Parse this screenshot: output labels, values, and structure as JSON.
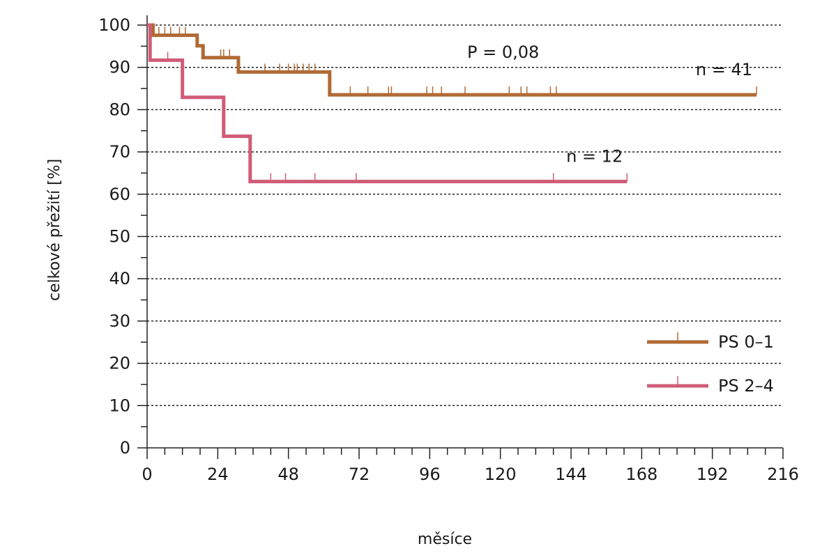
{
  "chart_data": {
    "type": "line",
    "step": true,
    "title": "",
    "xlabel": "měsíce",
    "ylabel": "celkové přežití [%]",
    "xlim": [
      0,
      216
    ],
    "ylim": [
      0,
      100
    ],
    "xticks": [
      "0",
      "24",
      "48",
      "72",
      "96",
      "120",
      "144",
      "168",
      "192",
      "216"
    ],
    "yticks": [
      "0",
      "10",
      "20",
      "30",
      "40",
      "50",
      "60",
      "70",
      "80",
      "90",
      "100"
    ],
    "grid": "horizontal dotted",
    "legend_position": "bottom-right",
    "annotations": {
      "p_value": "P = 0,08"
    },
    "series": [
      {
        "name": "PS 0–1",
        "color": "#b06a35",
        "n_label": "n = 41",
        "steps": [
          [
            0,
            100
          ],
          [
            2,
            97.6
          ],
          [
            17,
            95.1
          ],
          [
            19,
            92.3
          ],
          [
            31,
            88.9
          ],
          [
            62,
            83.5
          ],
          [
            207,
            83.5
          ]
        ],
        "censored": [
          4,
          6,
          8,
          11,
          13,
          25,
          26,
          28,
          40,
          45,
          48,
          50,
          51,
          53,
          55,
          57,
          69,
          75,
          82,
          83,
          95,
          97,
          100,
          108,
          123,
          127,
          129,
          137,
          139,
          207
        ]
      },
      {
        "name": "PS 2–4",
        "color": "#d05c78",
        "n_label": "n = 12",
        "steps": [
          [
            0,
            100
          ],
          [
            1,
            91.7
          ],
          [
            12,
            82.9
          ],
          [
            26,
            73.7
          ],
          [
            35,
            63.0
          ],
          [
            163,
            63.0
          ]
        ],
        "censored": [
          7,
          42,
          47,
          57,
          71,
          138,
          163
        ]
      }
    ]
  }
}
